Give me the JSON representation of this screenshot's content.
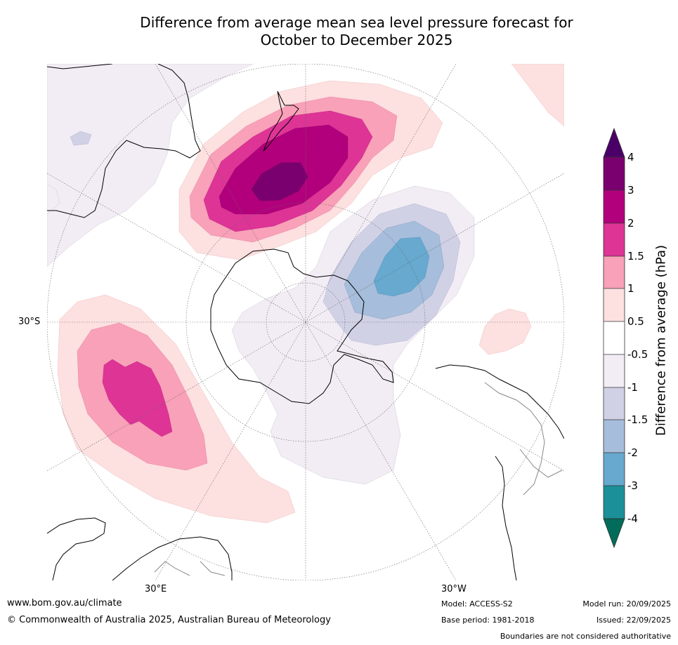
{
  "title_line1": "Difference from average mean sea level pressure forecast for",
  "title_line2": "October to December 2025",
  "map_labels": {
    "lat_30s": "30°S",
    "lon_30e": "30°E",
    "lon_30w": "30°W"
  },
  "colorbar": {
    "title": "Difference from average (hPa)",
    "ticks": [
      "4",
      "3",
      "2",
      "1.5",
      "1",
      "0.5",
      "-0.5",
      "-1",
      "-1.5",
      "-2",
      "-3",
      "-4"
    ],
    "colors": {
      "gt4": "#4b0068",
      "3to4": "#7a006f",
      "2to3": "#b2007c",
      "1.5to2": "#dd3496",
      "1to1.5": "#f8a1b8",
      "0.5to1": "#fde0e0",
      "neutral": "#ffffff",
      "-1to-0.5": "#f2ecf4",
      "-1.5to-1": "#d1d1e6",
      "-2to-1.5": "#a6bddb",
      "-3to-2": "#67a9cf",
      "-4to-3": "#1c9099",
      "lt-4": "#016c59"
    }
  },
  "footer": {
    "website": "www.bom.gov.au/climate",
    "copyright": "© Commonwealth of Australia 2025, Australian Bureau of Meteorology",
    "model": "Model: ACCESS-S2",
    "base_period": "Base period: 1981-2018",
    "model_run": "Model run: 20/09/2025",
    "issued": "Issued: 22/09/2025",
    "disclaimer": "Boundaries are not considered authoritative"
  }
}
